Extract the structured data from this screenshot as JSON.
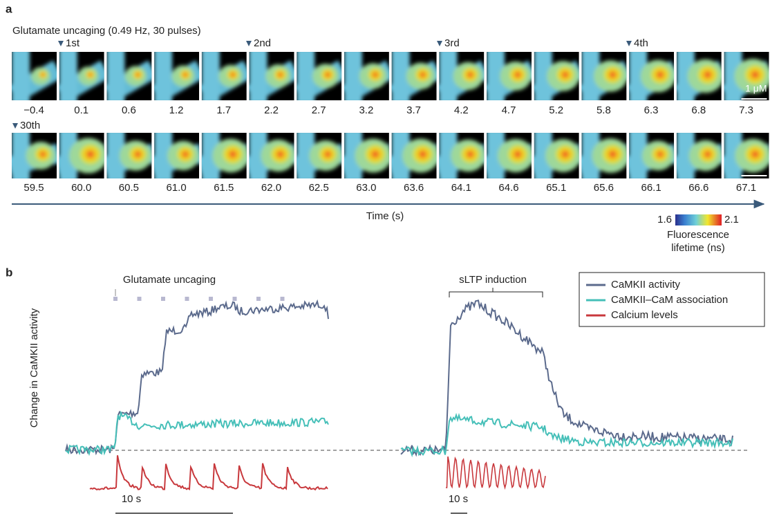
{
  "panel_a": {
    "label": "a",
    "title": "Glutamate uncaging (0.49 Hz, 30 pulses)",
    "pulses": [
      "1st",
      "2nd",
      "3rd",
      "4th",
      "30th"
    ],
    "row1_times": [
      "−0.4",
      "0.1",
      "0.6",
      "1.2",
      "1.7",
      "2.2",
      "2.7",
      "3.2",
      "3.7",
      "4.2",
      "4.7",
      "5.2",
      "5.8",
      "6.3",
      "6.8",
      "7.3"
    ],
    "row2_times": [
      "59.5",
      "60.0",
      "60.5",
      "61.0",
      "61.5",
      "62.0",
      "62.5",
      "63.0",
      "63.6",
      "64.1",
      "64.6",
      "65.1",
      "65.6",
      "66.1",
      "66.6",
      "67.1"
    ],
    "scale_bar": "1 μM",
    "time_axis": "Time (s)",
    "colorbar": {
      "min": "1.6",
      "max": "2.1",
      "label_line1": "Fluorescence",
      "label_line2": "lifetime (ns)"
    }
  },
  "panel_b": {
    "label": "b",
    "y_label": "Change in CaMKII activity",
    "left_annotation": "Glutamate uncaging",
    "right_annotation": "sLTP induction",
    "legend": [
      "CaMKII activity",
      "CaMKII–CaM association",
      "Calcium levels"
    ],
    "scale_bars": [
      "10 s",
      "10 s"
    ]
  }
}
